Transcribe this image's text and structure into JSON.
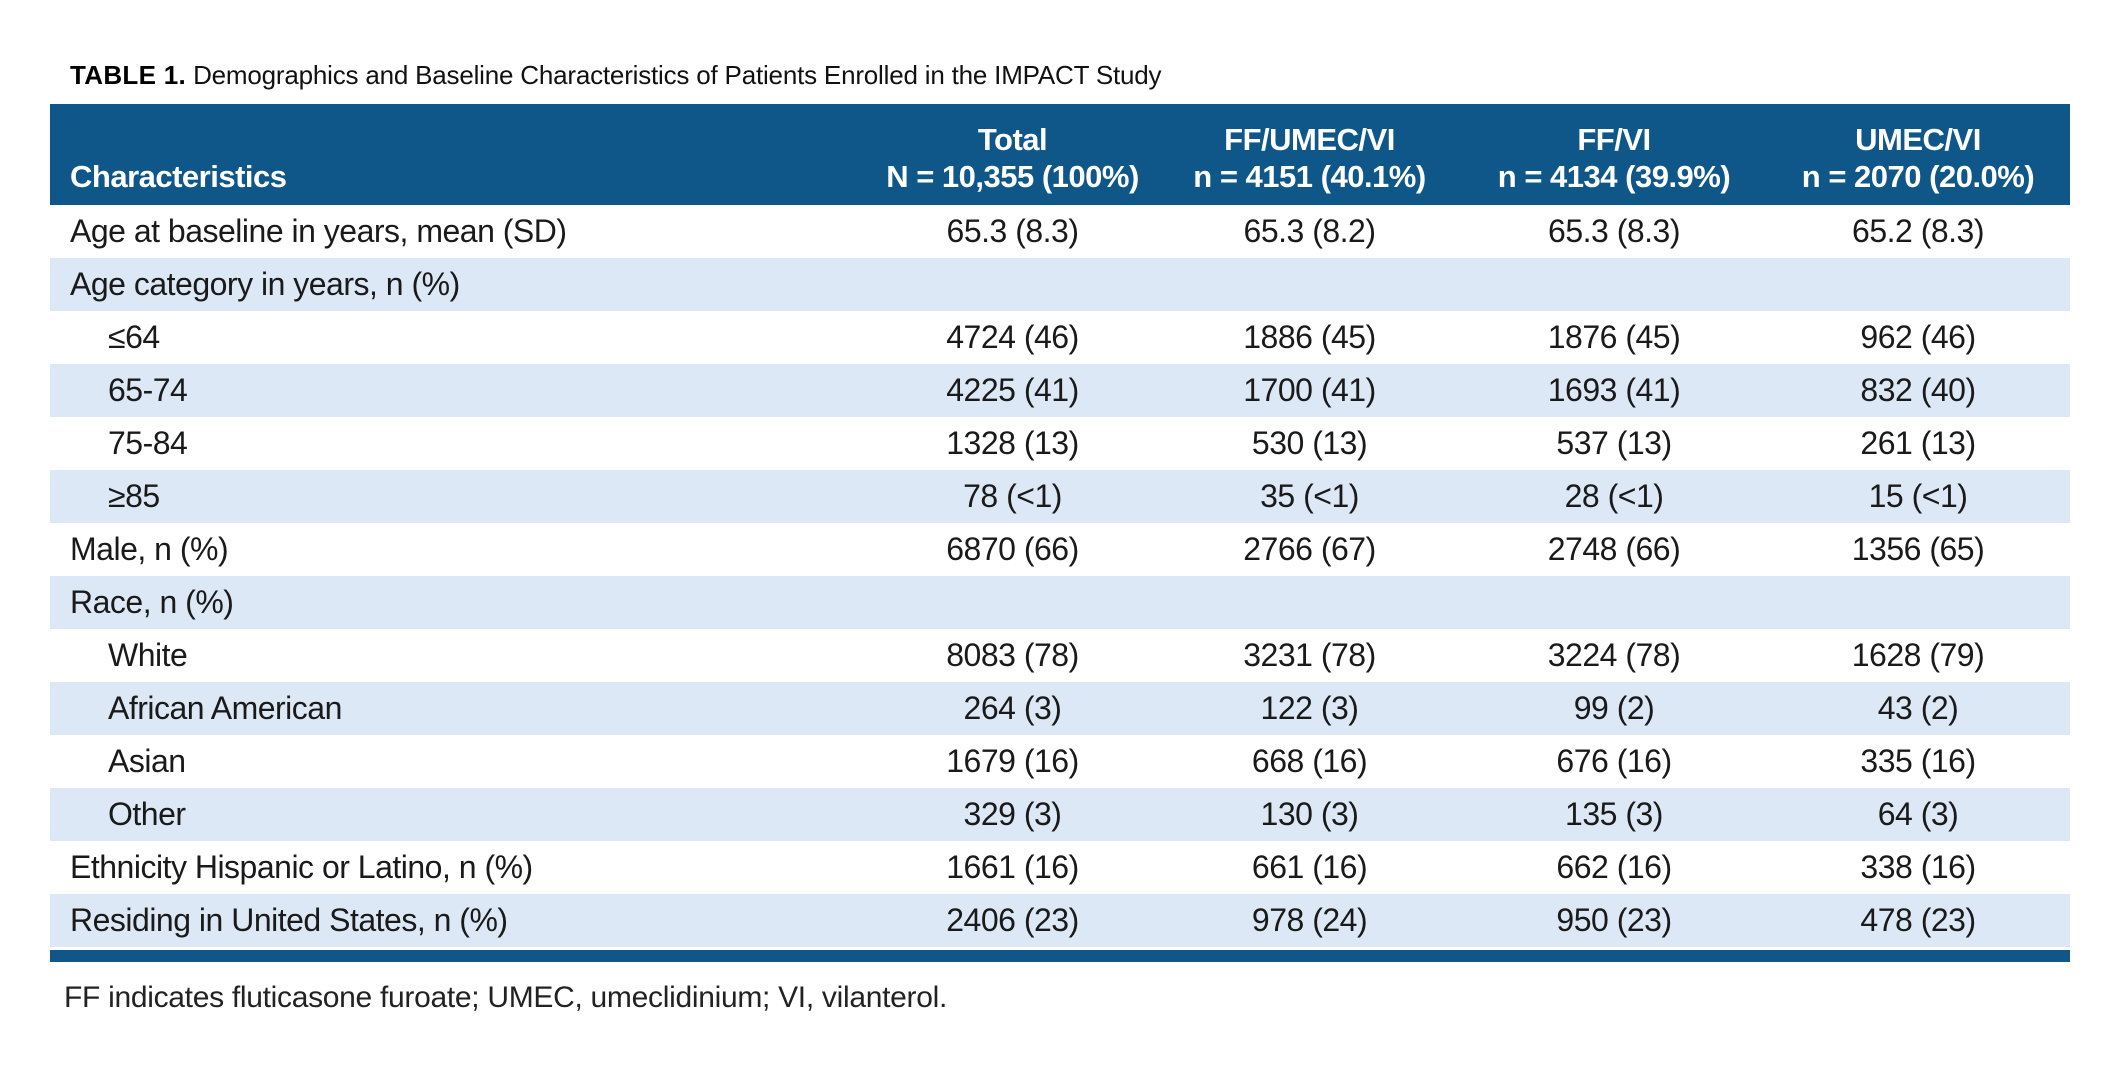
{
  "title": {
    "label": "TABLE 1.",
    "text": "Demographics and Baseline Characteristics of Patients Enrolled in the IMPACT Study"
  },
  "colors": {
    "header_bg": "#0F5788",
    "alt_row_bg": "#DCE8F5",
    "header_text": "#FFFFFF",
    "body_text": "#1A1A1A"
  },
  "table": {
    "columns": [
      {
        "line1": "",
        "line2": "Characteristics"
      },
      {
        "line1": "Total",
        "line2": "N = 10,355 (100%)"
      },
      {
        "line1": "FF/UMEC/VI",
        "line2": "n = 4151 (40.1%)"
      },
      {
        "line1": "FF/VI",
        "line2": "n = 4134 (39.9%)"
      },
      {
        "line1": "UMEC/VI",
        "line2": "n = 2070 (20.0%)"
      }
    ],
    "rows": [
      {
        "label": "Age at baseline in years, mean (SD)",
        "indent": false,
        "values": [
          "65.3 (8.3)",
          "65.3 (8.2)",
          "65.3 (8.3)",
          "65.2 (8.3)"
        ]
      },
      {
        "label": "Age category in years, n (%)",
        "indent": false,
        "values": [
          "",
          "",
          "",
          ""
        ]
      },
      {
        "label": "≤64",
        "indent": true,
        "values": [
          "4724 (46)",
          "1886 (45)",
          "1876 (45)",
          "962 (46)"
        ]
      },
      {
        "label": "65-74",
        "indent": true,
        "values": [
          "4225 (41)",
          "1700 (41)",
          "1693 (41)",
          "832 (40)"
        ]
      },
      {
        "label": "75-84",
        "indent": true,
        "values": [
          "1328 (13)",
          "530 (13)",
          "537 (13)",
          "261 (13)"
        ]
      },
      {
        "label": "≥85",
        "indent": true,
        "values": [
          "78 (<1)",
          "35 (<1)",
          "28 (<1)",
          "15 (<1)"
        ]
      },
      {
        "label": "Male, n (%)",
        "indent": false,
        "values": [
          "6870 (66)",
          "2766 (67)",
          "2748 (66)",
          "1356 (65)"
        ]
      },
      {
        "label": "Race, n (%)",
        "indent": false,
        "values": [
          "",
          "",
          "",
          ""
        ]
      },
      {
        "label": "White",
        "indent": true,
        "values": [
          "8083 (78)",
          "3231 (78)",
          "3224 (78)",
          "1628 (79)"
        ]
      },
      {
        "label": "African American",
        "indent": true,
        "values": [
          "264 (3)",
          "122 (3)",
          "99 (2)",
          "43 (2)"
        ]
      },
      {
        "label": "Asian",
        "indent": true,
        "values": [
          "1679 (16)",
          "668 (16)",
          "676 (16)",
          "335 (16)"
        ]
      },
      {
        "label": "Other",
        "indent": true,
        "values": [
          "329 (3)",
          "130 (3)",
          "135 (3)",
          "64 (3)"
        ]
      },
      {
        "label": "Ethnicity Hispanic or Latino, n (%)",
        "indent": false,
        "values": [
          "1661 (16)",
          "661 (16)",
          "662 (16)",
          "338 (16)"
        ]
      },
      {
        "label": "Residing in United States, n (%)",
        "indent": false,
        "values": [
          "2406 (23)",
          "978 (24)",
          "950 (23)",
          "478 (23)"
        ]
      }
    ]
  },
  "footnote": "FF indicates fluticasone furoate; UMEC, umeclidinium; VI, vilanterol."
}
